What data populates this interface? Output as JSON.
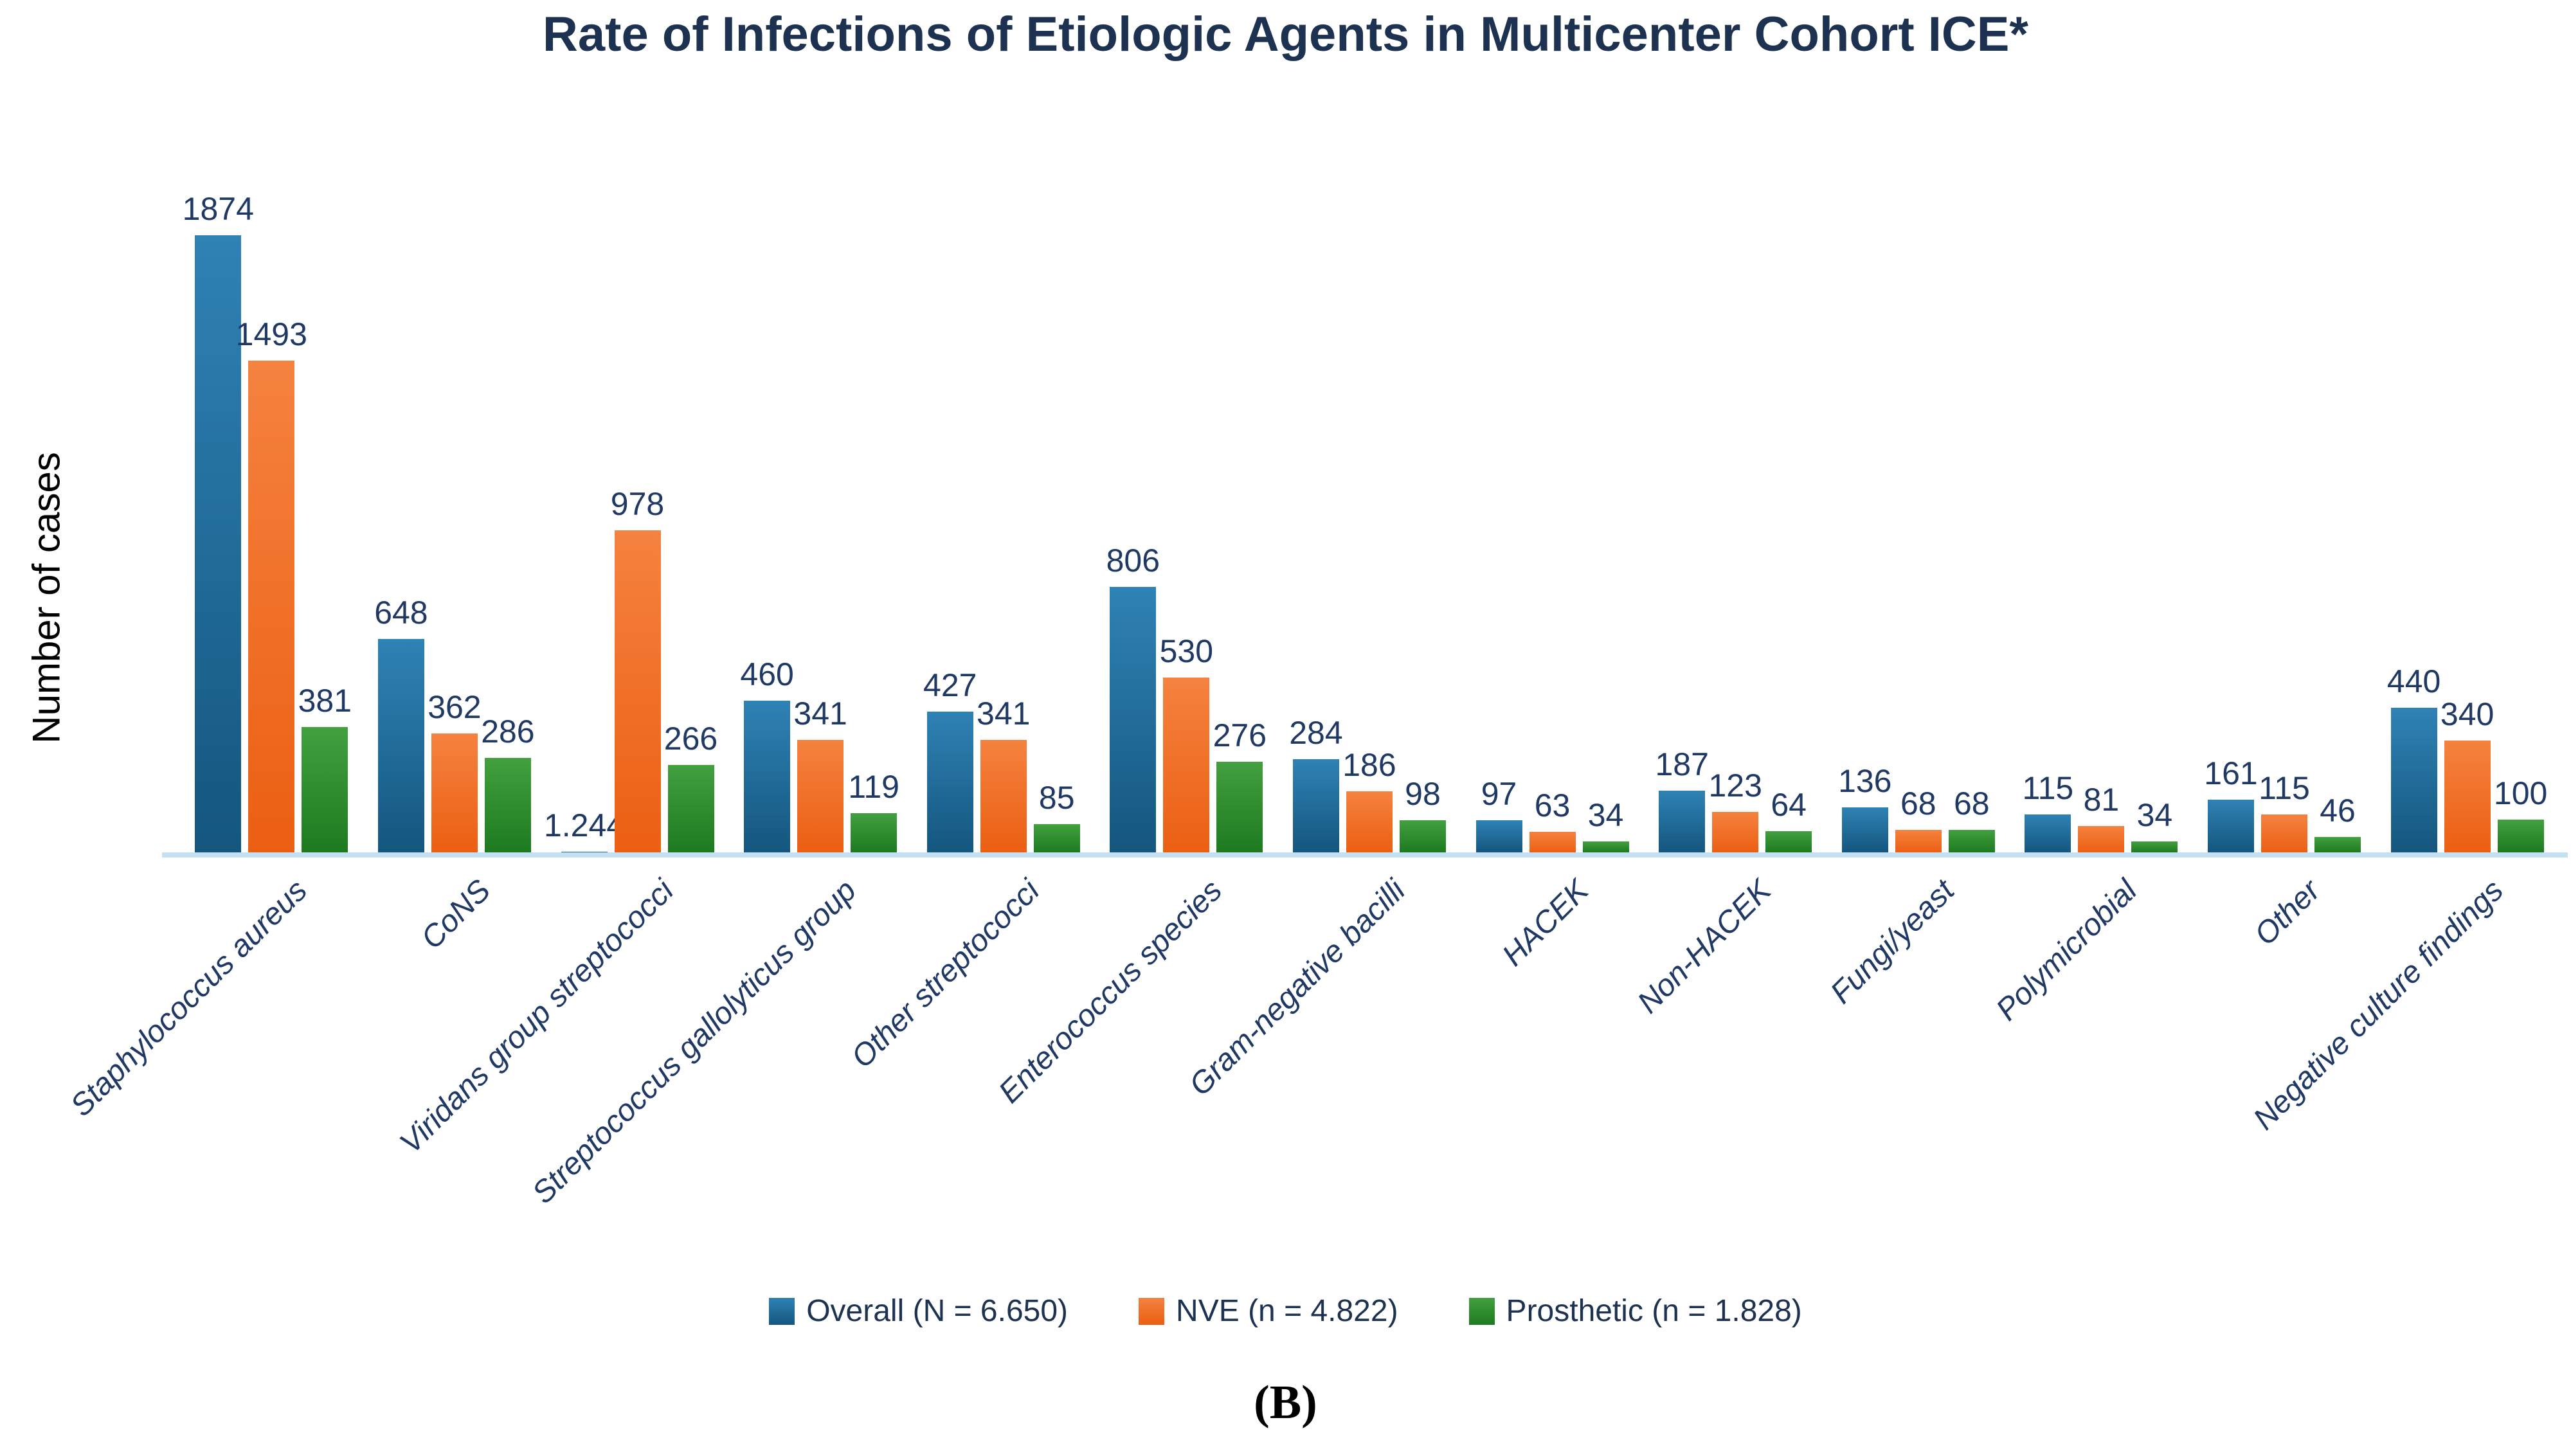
{
  "page": {
    "caption": "(B)"
  },
  "chart_data": {
    "type": "bar",
    "title": "Rate of Infections of Etiologic Agents in Multicenter Cohort ICE*",
    "xlabel": "",
    "ylabel": "Number of cases",
    "ymax": 1874,
    "ylim": [
      0,
      1874
    ],
    "grid": false,
    "y_ticks_visible": false,
    "legend_position": "bottom",
    "axis_line_color": "#c4e0f3",
    "label_color": "#1f3864",
    "title_color": "#1d3150",
    "categories": [
      "Staphylococcus aureus",
      "CoNS",
      "Viridans group streptococci",
      "Streptococcus gallolyticus group",
      "Other streptococci",
      "Enterococcus species",
      "Gram-negative bacilli",
      "HACEK",
      "Non-HACEK",
      "Fungi/yeast",
      "Polymicrobial",
      "Other",
      "Negative culture findings"
    ],
    "series": [
      {
        "name": "Overall (N = 6.650)",
        "color_top": "#2f82b5",
        "color_bottom": "#14567e",
        "values": [
          1874,
          648,
          1.244,
          460,
          427,
          806,
          284,
          97,
          187,
          136,
          115,
          161,
          440
        ],
        "labels": [
          "1874",
          "648",
          "1.244",
          "460",
          "427",
          "806",
          "284",
          "97",
          "187",
          "136",
          "115",
          "161",
          "440"
        ]
      },
      {
        "name": "NVE (n = 4.822)",
        "color_top": "#f5823f",
        "color_bottom": "#eb5f12",
        "values": [
          1493,
          362,
          978,
          341,
          341,
          530,
          186,
          63,
          123,
          68,
          81,
          115,
          340
        ],
        "labels": [
          "1493",
          "362",
          "978",
          "341",
          "341",
          "530",
          "186",
          "63",
          "123",
          "68",
          "81",
          "115",
          "340"
        ]
      },
      {
        "name": "Prosthetic (n = 1.828)",
        "color_top": "#43a03f",
        "color_bottom": "#1d7a1f",
        "values": [
          381,
          286,
          266,
          119,
          85,
          276,
          98,
          34,
          64,
          68,
          34,
          46,
          100
        ],
        "labels": [
          "381",
          "286",
          "266",
          "119",
          "85",
          "276",
          "98",
          "34",
          "64",
          "68",
          "34",
          "46",
          "100"
        ]
      }
    ]
  }
}
